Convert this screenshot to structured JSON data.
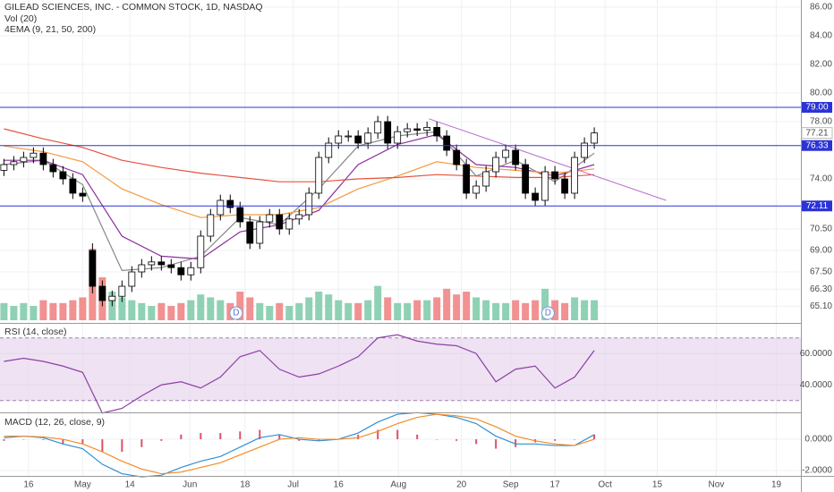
{
  "chart_data": {
    "type": "candlestick",
    "title": "GILEAD SCIENCES, INC. - COMMON STOCK, 1D, NASDAQ",
    "legend": [
      "Vol (20)",
      "4EMA (9, 21, 50, 200)"
    ],
    "xlim": [
      -0.4,
      81
    ],
    "xticks": [
      {
        "value": 2.5,
        "label": "16"
      },
      {
        "value": 8,
        "label": "May"
      },
      {
        "value": 12.8,
        "label": "14"
      },
      {
        "value": 18.9,
        "label": "Jun"
      },
      {
        "value": 24.5,
        "label": "18"
      },
      {
        "value": 29.4,
        "label": "Jul"
      },
      {
        "value": 34,
        "label": "16"
      },
      {
        "value": 40.1,
        "label": "Aug"
      },
      {
        "value": 46.5,
        "label": "20"
      },
      {
        "value": 51.5,
        "label": "Sep"
      },
      {
        "value": 56,
        "label": "17"
      },
      {
        "value": 61.1,
        "label": "Oct"
      },
      {
        "value": 66.4,
        "label": "15"
      },
      {
        "value": 72.4,
        "label": "Nov"
      },
      {
        "value": 78.5,
        "label": "19"
      }
    ],
    "ylim": [
      64,
      86.5
    ],
    "yticks": [
      {
        "value": 86,
        "label": "86.00"
      },
      {
        "value": 84,
        "label": "84.00"
      },
      {
        "value": 82,
        "label": "82.00"
      },
      {
        "value": 80,
        "label": "80.00"
      },
      {
        "value": 78,
        "label": "78.00"
      },
      {
        "value": 74,
        "label": "74.00"
      },
      {
        "value": 70.5,
        "label": "70.50"
      },
      {
        "value": 69,
        "label": "69.00"
      },
      {
        "value": 67.5,
        "label": "67.50"
      },
      {
        "value": 66.3,
        "label": "66.30"
      },
      {
        "value": 65.1,
        "label": "65.10"
      }
    ],
    "grid": true,
    "up_color": "#ffffff",
    "down_color": "#000000",
    "open": [
      74.6,
      75.0,
      75.2,
      75.5,
      75.8,
      75.0,
      74.5,
      74.0,
      73.0,
      69.0,
      66.5,
      65.5,
      65.8,
      66.5,
      67.5,
      68.0,
      68.2,
      68.0,
      67.8,
      67.3,
      67.8,
      70.0,
      71.5,
      72.5,
      72.0,
      71.0,
      69.5,
      71.0,
      71.5,
      70.5,
      71.2,
      71.5,
      73.0,
      75.5,
      76.5,
      77.0,
      77.0,
      76.5,
      77.2,
      78.0,
      76.5,
      77.3,
      77.5,
      77.4,
      77.6,
      77.0,
      76.0,
      75.0,
      73.0,
      73.5,
      74.5,
      75.5,
      76.0,
      75.0,
      73.0,
      72.5,
      74.5,
      74.0,
      73.0,
      75.5,
      76.5
    ],
    "high": [
      75.4,
      75.6,
      75.9,
      76.2,
      76.2,
      75.4,
      74.9,
      74.4,
      73.4,
      69.5,
      66.9,
      66.2,
      66.9,
      67.9,
      68.4,
      68.6,
      68.6,
      68.4,
      68.2,
      68.2,
      70.4,
      71.9,
      72.9,
      72.9,
      72.4,
      71.4,
      71.4,
      71.9,
      71.9,
      71.6,
      71.9,
      73.4,
      75.9,
      76.9,
      77.4,
      77.4,
      77.4,
      77.6,
      78.4,
      78.4,
      77.7,
      77.9,
      77.9,
      78.0,
      78.0,
      77.4,
      76.4,
      75.4,
      73.9,
      74.9,
      75.9,
      76.4,
      76.4,
      75.4,
      73.4,
      74.9,
      74.9,
      74.4,
      75.9,
      76.9,
      77.6
    ],
    "low": [
      74.2,
      74.6,
      74.8,
      75.1,
      74.6,
      74.1,
      73.6,
      72.6,
      72.4,
      66.0,
      65.1,
      65.1,
      65.4,
      66.1,
      67.1,
      67.6,
      67.6,
      67.4,
      66.9,
      66.9,
      67.4,
      69.6,
      71.1,
      71.6,
      70.6,
      69.1,
      69.1,
      70.6,
      70.1,
      70.1,
      70.8,
      71.1,
      72.6,
      75.1,
      76.1,
      76.6,
      76.1,
      76.1,
      76.8,
      76.1,
      76.1,
      76.9,
      77.0,
      77.0,
      76.6,
      75.6,
      74.6,
      72.6,
      72.6,
      73.1,
      74.1,
      75.1,
      74.6,
      72.6,
      72.1,
      72.1,
      73.6,
      72.6,
      72.6,
      75.1,
      76.1
    ],
    "close": [
      75.0,
      75.2,
      75.5,
      75.8,
      75.0,
      74.5,
      74.0,
      73.0,
      72.8,
      66.5,
      65.5,
      65.8,
      66.5,
      67.5,
      68.0,
      68.2,
      68.0,
      67.8,
      67.3,
      67.8,
      70.0,
      71.5,
      72.5,
      72.0,
      71.0,
      69.5,
      71.0,
      71.5,
      70.5,
      71.2,
      71.5,
      73.0,
      75.5,
      76.5,
      77.0,
      77.0,
      76.5,
      77.2,
      78.0,
      76.5,
      77.3,
      77.5,
      77.4,
      77.6,
      77.0,
      76.0,
      75.0,
      73.0,
      73.5,
      74.5,
      75.5,
      76.0,
      75.0,
      73.0,
      72.5,
      74.5,
      74.0,
      73.0,
      75.5,
      76.5,
      77.21
    ],
    "volume": [
      6,
      5,
      6,
      5,
      7,
      6,
      6,
      7,
      8,
      25,
      15,
      10,
      8,
      7,
      6,
      5,
      6,
      5,
      6,
      7,
      9,
      8,
      7,
      6,
      10,
      8,
      6,
      5,
      6,
      5,
      6,
      8,
      10,
      9,
      7,
      6,
      6,
      7,
      12,
      8,
      6,
      6,
      7,
      7,
      8,
      11,
      9,
      10,
      8,
      7,
      6,
      6,
      7,
      6,
      7,
      11,
      7,
      6,
      8,
      7,
      7
    ],
    "vlim": [
      0,
      40
    ],
    "vol_up_color": "#8fd1b4",
    "vol_down_color": "#f29191",
    "ema": [
      {
        "name": "9",
        "color": "#888888",
        "x": [
          0,
          4,
          8,
          12,
          16,
          20,
          24,
          28,
          32,
          36,
          40,
          44,
          48,
          52,
          56,
          60
        ],
        "values": [
          75.0,
          75.3,
          73.6,
          67.6,
          67.8,
          68.6,
          71.3,
          70.8,
          73.3,
          76.3,
          77.0,
          77.3,
          74.2,
          75.3,
          73.8,
          75.8
        ]
      },
      {
        "name": "21",
        "color": "#8b2f9e",
        "x": [
          0,
          4,
          8,
          12,
          16,
          20,
          24,
          28,
          32,
          36,
          40,
          44,
          48,
          52,
          56,
          60
        ],
        "values": [
          75.3,
          75.3,
          74.3,
          70.0,
          68.6,
          68.4,
          70.3,
          70.8,
          71.8,
          75.0,
          76.4,
          77.1,
          75.0,
          74.8,
          74.2,
          75.0
        ]
      },
      {
        "name": "50",
        "color": "#f39a3d",
        "x": [
          0,
          4,
          8,
          12,
          16,
          20,
          24,
          28,
          32,
          36,
          40,
          44,
          48,
          52,
          56,
          60
        ],
        "values": [
          76.3,
          75.9,
          75.2,
          73.3,
          72.2,
          71.3,
          71.5,
          71.5,
          72.0,
          73.3,
          74.2,
          75.2,
          74.8,
          74.6,
          74.4,
          74.7
        ]
      },
      {
        "name": "200",
        "color": "#e5533d",
        "x": [
          0,
          4,
          8,
          12,
          16,
          20,
          24,
          28,
          32,
          36,
          40,
          44,
          48,
          52,
          56,
          60
        ],
        "values": [
          77.5,
          76.8,
          76.2,
          75.3,
          74.8,
          74.4,
          74.1,
          73.8,
          73.8,
          74.0,
          74.1,
          74.3,
          74.2,
          74.1,
          74.1,
          74.3
        ]
      }
    ],
    "levels": [
      {
        "value": 79,
        "label": "79.00"
      },
      {
        "value": 76.33,
        "label": "76.33"
      },
      {
        "value": 72.11,
        "label": "72.11"
      }
    ],
    "level_color": "#2b33d6",
    "last_price": 77.21,
    "trendline": {
      "x": [
        43.2,
        67.3
      ],
      "y": [
        78.2,
        72.5
      ],
      "color": "#b56cc9"
    },
    "dividends": [
      {
        "x": 23.6,
        "label": "D"
      },
      {
        "x": 55.3,
        "label": "D"
      }
    ],
    "rsi": {
      "title": "RSI (14, close)",
      "x": [
        0,
        2,
        4,
        6,
        8,
        10,
        12,
        14,
        16,
        18,
        20,
        22,
        24,
        26,
        28,
        30,
        32,
        34,
        36,
        38,
        40,
        42,
        44,
        46,
        48,
        50,
        52,
        54,
        56,
        58,
        60
      ],
      "values": [
        55,
        57,
        55,
        52,
        48,
        22,
        25,
        33,
        40,
        42,
        38,
        45,
        58,
        62,
        50,
        45,
        47,
        52,
        58,
        70,
        72,
        68,
        66,
        65,
        60,
        42,
        50,
        52,
        38,
        45,
        62
      ],
      "ylim": [
        23,
        79
      ],
      "yticks": [
        {
          "value": 60,
          "label": "60.0000"
        },
        {
          "value": 40,
          "label": "40.0000"
        }
      ],
      "bands": [
        30,
        70
      ],
      "color": "#8e3fa6",
      "band_color": "#e7d6ee"
    },
    "macd": {
      "title": "MACD (12, 26, close, 9)",
      "x": [
        0,
        2,
        4,
        6,
        8,
        10,
        12,
        14,
        16,
        18,
        20,
        22,
        24,
        26,
        28,
        30,
        32,
        34,
        36,
        38,
        40,
        42,
        44,
        46,
        48,
        50,
        52,
        54,
        56,
        58,
        60
      ],
      "macd": [
        0.1,
        0.2,
        0.1,
        -0.3,
        -0.6,
        -1.6,
        -2.2,
        -2.4,
        -2.3,
        -1.8,
        -1.4,
        -1.1,
        -0.5,
        0.1,
        0.3,
        0.0,
        -0.1,
        0.0,
        0.4,
        1.1,
        1.6,
        1.7,
        1.6,
        1.4,
        1.0,
        0.2,
        -0.3,
        -0.3,
        -0.4,
        -0.4,
        0.3
      ],
      "signal": [
        0.2,
        0.2,
        0.15,
        0.0,
        -0.3,
        -0.8,
        -1.4,
        -1.9,
        -2.2,
        -2.1,
        -1.8,
        -1.5,
        -1.0,
        -0.5,
        0.0,
        0.1,
        0.0,
        0.0,
        0.1,
        0.5,
        1.0,
        1.4,
        1.6,
        1.5,
        1.3,
        0.8,
        0.2,
        -0.1,
        -0.3,
        -0.4,
        0.0
      ],
      "histogram": [
        -0.1,
        0,
        -0.05,
        -0.3,
        -0.3,
        -0.8,
        -0.8,
        -0.5,
        -0.1,
        0.3,
        0.4,
        0.4,
        0.5,
        0.6,
        0.3,
        -0.1,
        -0.1,
        0,
        0.3,
        0.6,
        0.6,
        0.3,
        0,
        -0.1,
        -0.3,
        -0.6,
        -0.5,
        -0.2,
        -0.1,
        0,
        0.3
      ],
      "ylim": [
        -2.34,
        1.66
      ],
      "yticks": [
        {
          "value": 0,
          "label": "0.0000"
        },
        {
          "value": -2,
          "label": "-2.0000"
        }
      ],
      "macd_color": "#2f8fd8",
      "signal_color": "#f28c28",
      "hist_color": "#e0506a"
    }
  }
}
